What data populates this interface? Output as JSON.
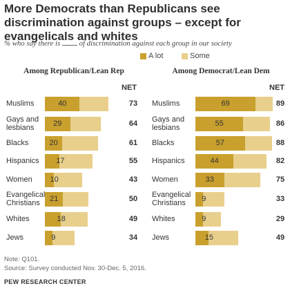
{
  "title": "More Democrats than Republicans see discrimination against groups – except for evangelicals and whites",
  "subtitle_before": "% who say there is ",
  "subtitle_after": " of discrimination against each group in our society",
  "legend": [
    {
      "label": "A lot",
      "color": "#c9a02e"
    },
    {
      "label": "Some",
      "color": "#e8cf8c"
    }
  ],
  "net_label": "NET",
  "chart_data": [
    {
      "type": "bar",
      "orientation": "horizontal",
      "stacked": true,
      "title": "Among Republican/Lean Rep",
      "categories": [
        "Muslims",
        "Gays and\nlesbians",
        "Blacks",
        "Hispanics",
        "Women",
        "Evangelical\nChristians",
        "Whites",
        "Jews"
      ],
      "series": [
        {
          "name": "A lot",
          "values": [
            40,
            29,
            20,
            17,
            10,
            21,
            18,
            9
          ]
        },
        {
          "name": "Some",
          "values": [
            33,
            35,
            41,
            38,
            33,
            29,
            31,
            25
          ]
        }
      ],
      "net": [
        73,
        64,
        61,
        55,
        43,
        50,
        49,
        34
      ]
    },
    {
      "type": "bar",
      "orientation": "horizontal",
      "stacked": true,
      "title": "Among Democrat/Lean Dem",
      "categories": [
        "Muslims",
        "Gays and\nlesbians",
        "Blacks",
        "Hispanics",
        "Women",
        "Evangelical\nChristians",
        "Whites",
        "Jews"
      ],
      "series": [
        {
          "name": "A lot",
          "values": [
            69,
            55,
            57,
            44,
            33,
            9,
            9,
            15
          ]
        },
        {
          "name": "Some",
          "values": [
            20,
            31,
            31,
            38,
            42,
            24,
            20,
            34
          ]
        }
      ],
      "net": [
        89,
        86,
        88,
        82,
        75,
        33,
        29,
        49
      ]
    }
  ],
  "note": "Note: Q101.",
  "source": "Source: Survey conducted Nov. 30-Dec. 5, 2016.",
  "org": "PEW RESEARCH CENTER"
}
